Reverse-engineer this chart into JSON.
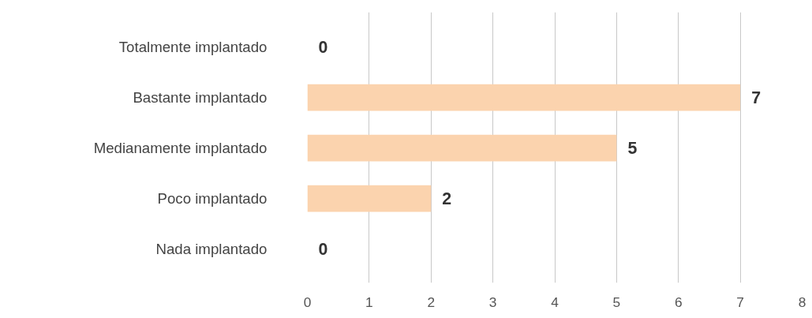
{
  "chart_data": {
    "type": "bar",
    "orientation": "horizontal",
    "categories": [
      "Totalmente implantado",
      "Bastante implantado",
      "Medianamente implantado",
      "Poco implantado",
      "Nada implantado"
    ],
    "values": [
      0,
      7,
      5,
      2,
      0
    ],
    "color": "#fbd3ae",
    "xlim": [
      0,
      8
    ],
    "xticks": [
      0,
      1,
      2,
      3,
      4,
      5,
      6,
      7,
      8
    ],
    "grid": "x",
    "data_labels": true
  }
}
